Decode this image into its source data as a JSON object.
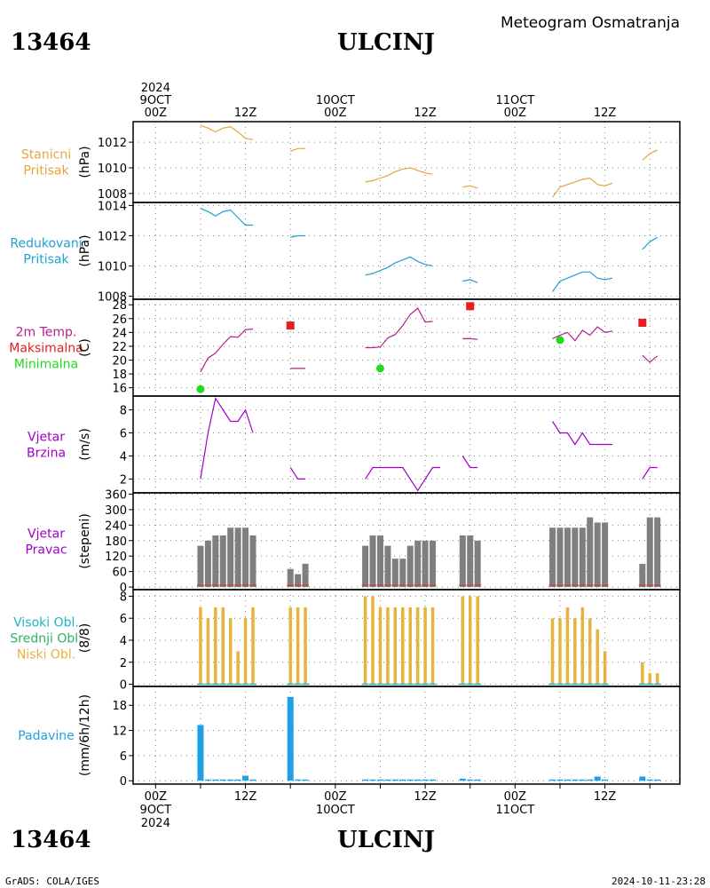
{
  "header": {
    "station_id": "13464",
    "station_name": "ULCINJ",
    "subtitle": "Meteogram Osmatranja",
    "footer_left": "GrADS: COLA/IGES",
    "footer_right": "2024-10-11-23:28"
  },
  "time_axis": {
    "top_labels": [
      {
        "hour": 0,
        "lines": [
          "2024",
          "9OCT",
          "00Z"
        ]
      },
      {
        "hour": 12,
        "lines": [
          "12Z"
        ]
      },
      {
        "hour": 24,
        "lines": [
          "10OCT",
          "00Z"
        ]
      },
      {
        "hour": 36,
        "lines": [
          "12Z"
        ]
      },
      {
        "hour": 48,
        "lines": [
          "11OCT",
          "00Z"
        ]
      },
      {
        "hour": 60,
        "lines": [
          "12Z"
        ]
      }
    ],
    "bottom_labels": [
      {
        "hour": 0,
        "lines": [
          "00Z",
          "9OCT",
          "2024"
        ]
      },
      {
        "hour": 12,
        "lines": [
          "12Z"
        ]
      },
      {
        "hour": 24,
        "lines": [
          "00Z",
          "10OCT"
        ]
      },
      {
        "hour": 36,
        "lines": [
          "12Z"
        ]
      },
      {
        "hour": 48,
        "lines": [
          "00Z",
          "11OCT"
        ]
      },
      {
        "hour": 60,
        "lines": [
          "12Z"
        ]
      }
    ]
  },
  "colors": {
    "station_pressure": "#e6a53c",
    "sea_pressure": "#1ea0d2",
    "temp": "#b4208c",
    "tmax": "#e61e1e",
    "tmin": "#1edc1e",
    "wind": "#a000c8",
    "direction_bar": "#7f7f7f",
    "direction_line": "#c83c3c",
    "high_cloud": "#1eb4c8",
    "mid_cloud": "#2ab464",
    "low_cloud": "#e6b43c",
    "precip": "#1ea0e6"
  },
  "panels": [
    {
      "id": "station-pressure",
      "labels": [
        "Stanicni",
        "Pritisak"
      ],
      "label_colors": [
        "#e6a53c",
        "#e6a53c"
      ],
      "ylabel": "(hPa)",
      "ylim": [
        1007.3,
        1013.6
      ],
      "ticks": [
        1008,
        1010,
        1012
      ]
    },
    {
      "id": "sea-pressure",
      "labels": [
        "Redukovani",
        "Pritisak"
      ],
      "label_colors": [
        "#1ea0d2",
        "#1ea0d2"
      ],
      "ylabel": "(hPa)",
      "ylim": [
        1007.8,
        1014.2
      ],
      "ticks": [
        1008,
        1010,
        1012,
        1014
      ]
    },
    {
      "id": "temperature",
      "labels": [
        "2m Temp.",
        "Maksimalna",
        "Minimalna"
      ],
      "label_colors": [
        "#b4208c",
        "#e61e1e",
        "#1edc1e"
      ],
      "ylabel": "(C)",
      "ylim": [
        14.8,
        28.8
      ],
      "ticks": [
        16,
        18,
        20,
        22,
        24,
        26,
        28
      ]
    },
    {
      "id": "wind-speed",
      "labels": [
        "Vjetar",
        "Brzina"
      ],
      "label_colors": [
        "#a000c8",
        "#a000c8"
      ],
      "ylabel": "(m/s)",
      "ylim": [
        0.8,
        9.2
      ],
      "ticks": [
        2,
        4,
        6,
        8
      ]
    },
    {
      "id": "wind-direction",
      "labels": [
        "Vjetar",
        "Pravac"
      ],
      "label_colors": [
        "#a000c8",
        "#a000c8"
      ],
      "ylabel": "(stepeni)",
      "ylim": [
        -10,
        365
      ],
      "ticks": [
        0,
        60,
        120,
        180,
        240,
        300,
        360
      ]
    },
    {
      "id": "cloud-cover",
      "labels": [
        "Visoki Obl.",
        "Srednji Obl.",
        "Niski Obl."
      ],
      "label_colors": [
        "#1eb4c8",
        "#2ab464",
        "#e6b43c"
      ],
      "ylabel": "(8/8)",
      "ylim": [
        -0.2,
        8.6
      ],
      "ticks": [
        0,
        2,
        4,
        6,
        8
      ]
    },
    {
      "id": "precipitation",
      "labels": [
        "Padavine"
      ],
      "label_colors": [
        "#1ea0e6"
      ],
      "ylabel": "(mm/6h/12h)",
      "ylim": [
        -0.8,
        22.5
      ],
      "ticks": [
        0,
        6,
        12,
        18
      ]
    }
  ],
  "chart_data": {
    "type": "line",
    "x_unit": "hours since 9OCT 00Z",
    "xlim": [
      -3,
      70
    ],
    "station_pressure": [
      [
        [
          6,
          1013.3
        ],
        [
          7,
          1013.1
        ],
        [
          8,
          1012.8
        ],
        [
          9,
          1013.1
        ],
        [
          10,
          1013.2
        ],
        [
          11,
          1012.8
        ],
        [
          12,
          1012.3
        ],
        [
          13,
          1012.2
        ]
      ],
      [
        [
          18,
          1011.3
        ],
        [
          19,
          1011.5
        ],
        [
          20,
          1011.5
        ]
      ],
      [
        [
          28,
          1008.9
        ],
        [
          29,
          1009.0
        ],
        [
          30,
          1009.2
        ],
        [
          31,
          1009.4
        ],
        [
          32,
          1009.7
        ],
        [
          33,
          1009.9
        ],
        [
          34,
          1010.0
        ],
        [
          35,
          1009.8
        ],
        [
          36,
          1009.6
        ],
        [
          37,
          1009.5
        ]
      ],
      [
        [
          41,
          1008.5
        ],
        [
          42,
          1008.6
        ],
        [
          43,
          1008.4
        ]
      ],
      [
        [
          53,
          1007.7
        ],
        [
          54,
          1008.5
        ],
        [
          55,
          1008.7
        ],
        [
          56,
          1008.9
        ],
        [
          57,
          1009.1
        ],
        [
          58,
          1009.2
        ],
        [
          59,
          1008.7
        ],
        [
          60,
          1008.6
        ],
        [
          61,
          1008.8
        ]
      ],
      [
        [
          65,
          1010.6
        ],
        [
          66,
          1011.1
        ],
        [
          67,
          1011.4
        ]
      ]
    ],
    "sea_pressure": [
      [
        [
          6,
          1013.8
        ],
        [
          7,
          1013.6
        ],
        [
          8,
          1013.3
        ],
        [
          9,
          1013.6
        ],
        [
          10,
          1013.7
        ],
        [
          11,
          1013.2
        ],
        [
          12,
          1012.7
        ],
        [
          13,
          1012.7
        ]
      ],
      [
        [
          18,
          1011.9
        ],
        [
          19,
          1012.0
        ],
        [
          20,
          1012.0
        ]
      ],
      [
        [
          28,
          1009.4
        ],
        [
          29,
          1009.5
        ],
        [
          30,
          1009.7
        ],
        [
          31,
          1009.9
        ],
        [
          32,
          1010.2
        ],
        [
          33,
          1010.4
        ],
        [
          34,
          1010.6
        ],
        [
          35,
          1010.3
        ],
        [
          36,
          1010.1
        ],
        [
          37,
          1010.0
        ]
      ],
      [
        [
          41,
          1009.0
        ],
        [
          42,
          1009.1
        ],
        [
          43,
          1008.9
        ]
      ],
      [
        [
          53,
          1008.3
        ],
        [
          54,
          1009.0
        ],
        [
          55,
          1009.2
        ],
        [
          56,
          1009.4
        ],
        [
          57,
          1009.6
        ],
        [
          58,
          1009.6
        ],
        [
          59,
          1009.2
        ],
        [
          60,
          1009.1
        ],
        [
          61,
          1009.2
        ]
      ],
      [
        [
          65,
          1011.1
        ],
        [
          66,
          1011.6
        ],
        [
          67,
          1011.9
        ]
      ]
    ],
    "temperature": [
      [
        [
          6,
          18.3
        ],
        [
          7,
          20.3
        ],
        [
          8,
          21.0
        ],
        [
          9,
          22.3
        ],
        [
          10,
          23.4
        ],
        [
          11,
          23.3
        ],
        [
          12,
          24.4
        ],
        [
          13,
          24.5
        ]
      ],
      [
        [
          18,
          18.8
        ],
        [
          19,
          18.8
        ],
        [
          20,
          18.8
        ]
      ],
      [
        [
          28,
          21.8
        ],
        [
          29,
          21.8
        ],
        [
          30,
          21.9
        ],
        [
          31,
          23.2
        ],
        [
          32,
          23.7
        ],
        [
          33,
          25.0
        ],
        [
          34,
          26.6
        ],
        [
          35,
          27.5
        ],
        [
          36,
          25.5
        ],
        [
          37,
          25.6
        ]
      ],
      [
        [
          41,
          23.1
        ],
        [
          42,
          23.1
        ],
        [
          43,
          23.0
        ]
      ],
      [
        [
          53,
          23.1
        ],
        [
          54,
          23.6
        ],
        [
          55,
          24.0
        ],
        [
          56,
          22.8
        ],
        [
          57,
          24.3
        ],
        [
          58,
          23.6
        ],
        [
          59,
          24.8
        ],
        [
          60,
          24.0
        ],
        [
          61,
          24.2
        ]
      ],
      [
        [
          65,
          20.7
        ],
        [
          66,
          19.7
        ],
        [
          67,
          20.6
        ]
      ]
    ],
    "tmax": [
      [
        18,
        25.0
      ],
      [
        42,
        27.8
      ],
      [
        65,
        25.4
      ]
    ],
    "tmin": [
      [
        6,
        15.8
      ],
      [
        30,
        18.8
      ],
      [
        54,
        22.9
      ]
    ],
    "wind_speed": [
      [
        [
          6,
          2
        ],
        [
          7,
          6
        ],
        [
          8,
          9
        ],
        [
          9,
          8
        ],
        [
          10,
          7
        ],
        [
          11,
          7
        ],
        [
          12,
          8
        ],
        [
          13,
          6
        ]
      ],
      [
        [
          18,
          3
        ],
        [
          19,
          2
        ],
        [
          20,
          2
        ]
      ],
      [
        [
          28,
          2
        ],
        [
          29,
          3
        ],
        [
          30,
          3
        ],
        [
          31,
          3
        ],
        [
          32,
          3
        ],
        [
          33,
          3
        ],
        [
          34,
          2
        ],
        [
          35,
          1
        ],
        [
          36,
          2
        ],
        [
          37,
          3
        ],
        [
          38,
          3
        ]
      ],
      [
        [
          41,
          4
        ],
        [
          42,
          3
        ],
        [
          43,
          3
        ]
      ],
      [
        [
          53,
          7
        ],
        [
          54,
          6
        ],
        [
          55,
          6
        ],
        [
          56,
          5
        ],
        [
          57,
          6
        ],
        [
          58,
          5
        ],
        [
          59,
          5
        ],
        [
          60,
          5
        ],
        [
          61,
          5
        ]
      ],
      [
        [
          65,
          2
        ],
        [
          66,
          3
        ],
        [
          67,
          3
        ]
      ]
    ],
    "wind_direction": [
      [
        6,
        160
      ],
      [
        7,
        180
      ],
      [
        8,
        200
      ],
      [
        9,
        200
      ],
      [
        10,
        230
      ],
      [
        11,
        230
      ],
      [
        12,
        230
      ],
      [
        13,
        200
      ],
      [
        18,
        70
      ],
      [
        19,
        50
      ],
      [
        20,
        90
      ],
      [
        28,
        160
      ],
      [
        29,
        200
      ],
      [
        30,
        200
      ],
      [
        31,
        160
      ],
      [
        32,
        110
      ],
      [
        33,
        110
      ],
      [
        34,
        160
      ],
      [
        35,
        180
      ],
      [
        36,
        180
      ],
      [
        37,
        180
      ],
      [
        41,
        200
      ],
      [
        42,
        200
      ],
      [
        43,
        180
      ],
      [
        53,
        230
      ],
      [
        54,
        230
      ],
      [
        55,
        230
      ],
      [
        56,
        230
      ],
      [
        57,
        230
      ],
      [
        58,
        270
      ],
      [
        59,
        250
      ],
      [
        60,
        250
      ],
      [
        65,
        90
      ],
      [
        66,
        270
      ],
      [
        67,
        270
      ]
    ],
    "cloud_low": [
      [
        6,
        7
      ],
      [
        7,
        6
      ],
      [
        8,
        7
      ],
      [
        9,
        7
      ],
      [
        10,
        6
      ],
      [
        11,
        3
      ],
      [
        12,
        6
      ],
      [
        13,
        7
      ],
      [
        18,
        7
      ],
      [
        19,
        7
      ],
      [
        20,
        7
      ],
      [
        28,
        8
      ],
      [
        29,
        8
      ],
      [
        30,
        7
      ],
      [
        31,
        7
      ],
      [
        32,
        7
      ],
      [
        33,
        7
      ],
      [
        34,
        7
      ],
      [
        35,
        7
      ],
      [
        36,
        7
      ],
      [
        37,
        7
      ],
      [
        41,
        8
      ],
      [
        42,
        8
      ],
      [
        43,
        8
      ],
      [
        53,
        6
      ],
      [
        54,
        6
      ],
      [
        55,
        7
      ],
      [
        56,
        6
      ],
      [
        57,
        7
      ],
      [
        58,
        6
      ],
      [
        59,
        5
      ],
      [
        60,
        3
      ],
      [
        65,
        2
      ],
      [
        66,
        1
      ],
      [
        67,
        1
      ]
    ],
    "precipitation": [
      [
        6,
        13.3
      ],
      [
        7,
        0.3
      ],
      [
        8,
        0.3
      ],
      [
        9,
        0.3
      ],
      [
        10,
        0.3
      ],
      [
        11,
        0.3
      ],
      [
        12,
        1.2
      ],
      [
        13,
        0.3
      ],
      [
        18,
        20.0
      ],
      [
        19,
        0.3
      ],
      [
        20,
        0.3
      ],
      [
        28,
        0.3
      ],
      [
        29,
        0.3
      ],
      [
        30,
        0.3
      ],
      [
        31,
        0.3
      ],
      [
        32,
        0.3
      ],
      [
        33,
        0.3
      ],
      [
        34,
        0.3
      ],
      [
        35,
        0.3
      ],
      [
        36,
        0.3
      ],
      [
        37,
        0.3
      ],
      [
        41,
        0.5
      ],
      [
        42,
        0.3
      ],
      [
        43,
        0.3
      ],
      [
        53,
        0.3
      ],
      [
        54,
        0.3
      ],
      [
        55,
        0.3
      ],
      [
        56,
        0.3
      ],
      [
        57,
        0.3
      ],
      [
        58,
        0.3
      ],
      [
        59,
        1.0
      ],
      [
        60,
        0.3
      ],
      [
        65,
        1.0
      ],
      [
        66,
        0.3
      ],
      [
        67,
        0.3
      ]
    ]
  }
}
